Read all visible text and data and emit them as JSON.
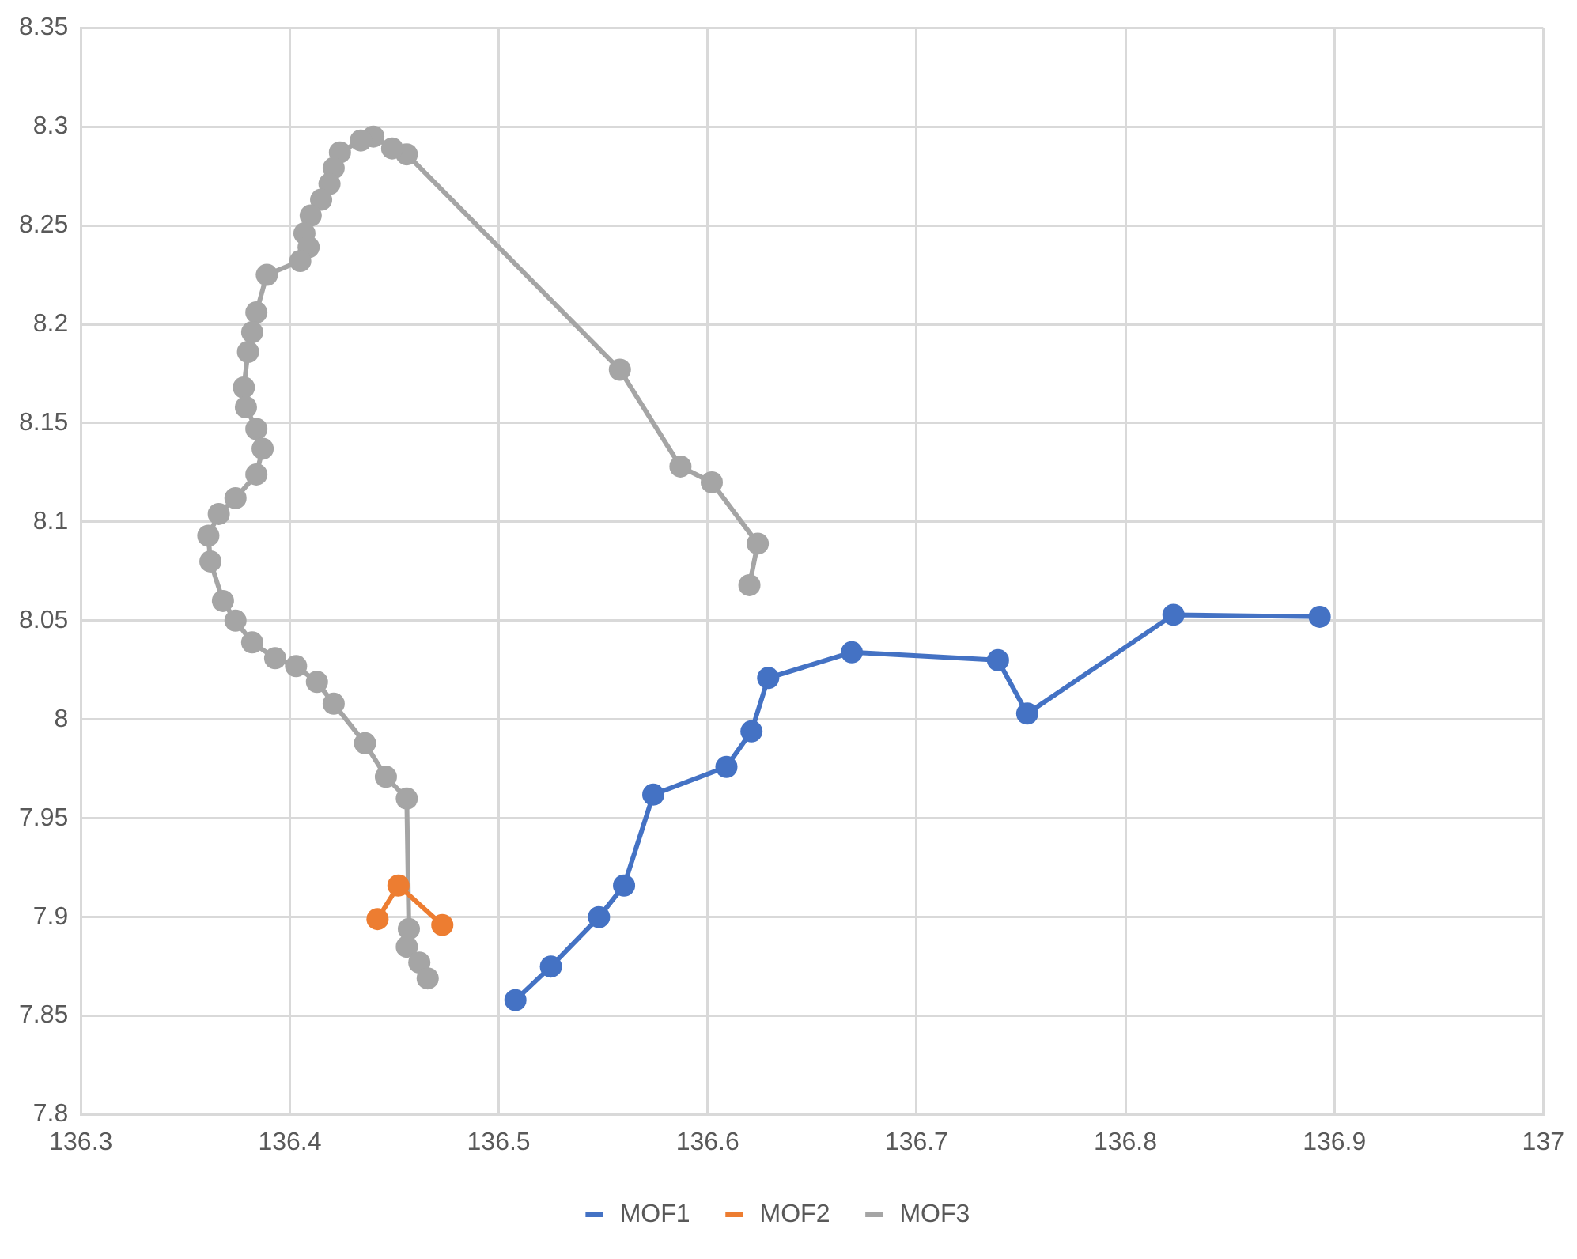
{
  "chart_data": {
    "type": "line",
    "marker": "circle",
    "grid": true,
    "legend": "bottom",
    "xlim": [
      136.3,
      137
    ],
    "xticks": [
      136.3,
      136.4,
      136.5,
      136.6,
      136.7,
      136.8,
      136.9,
      137
    ],
    "ylim": [
      7.8,
      8.35
    ],
    "yticks": [
      7.8,
      7.85,
      7.9,
      7.95,
      8,
      8.05,
      8.1,
      8.15,
      8.2,
      8.25,
      8.3,
      8.35
    ],
    "series": [
      {
        "name": "MOF1",
        "color": "#4472c4",
        "x": [
          136.508,
          136.525,
          136.548,
          136.56,
          136.574,
          136.609,
          136.621,
          136.629,
          136.669,
          136.739,
          136.753,
          136.823,
          136.893
        ],
        "values": [
          7.858,
          7.875,
          7.9,
          7.916,
          7.962,
          7.976,
          7.994,
          8.021,
          8.034,
          8.03,
          8.003,
          8.053,
          8.052
        ]
      },
      {
        "name": "MOF2",
        "color": "#ed7d31",
        "x": [
          136.442,
          136.452,
          136.473
        ],
        "values": [
          7.899,
          7.916,
          7.896
        ]
      },
      {
        "name": "MOF3",
        "color": "#a5a5a5",
        "x": [
          136.62,
          136.624,
          136.602,
          136.587,
          136.558,
          136.456,
          136.449,
          136.44,
          136.434,
          136.424,
          136.421,
          136.419,
          136.415,
          136.41,
          136.407,
          136.409,
          136.405,
          136.389,
          136.384,
          136.382,
          136.38,
          136.378,
          136.379,
          136.384,
          136.387,
          136.384,
          136.374,
          136.366,
          136.361,
          136.362,
          136.368,
          136.374,
          136.382,
          136.393,
          136.403,
          136.413,
          136.421,
          136.436,
          136.446,
          136.456,
          136.457,
          136.456,
          136.462,
          136.466
        ],
        "values": [
          8.068,
          8.089,
          8.12,
          8.128,
          8.177,
          8.286,
          8.289,
          8.295,
          8.293,
          8.287,
          8.279,
          8.271,
          8.263,
          8.255,
          8.246,
          8.239,
          8.232,
          8.225,
          8.206,
          8.196,
          8.186,
          8.168,
          8.158,
          8.147,
          8.137,
          8.124,
          8.112,
          8.104,
          8.093,
          8.08,
          8.06,
          8.05,
          8.039,
          8.031,
          8.027,
          8.019,
          8.008,
          7.988,
          7.971,
          7.96,
          7.894,
          7.885,
          7.877,
          7.869
        ]
      }
    ]
  }
}
